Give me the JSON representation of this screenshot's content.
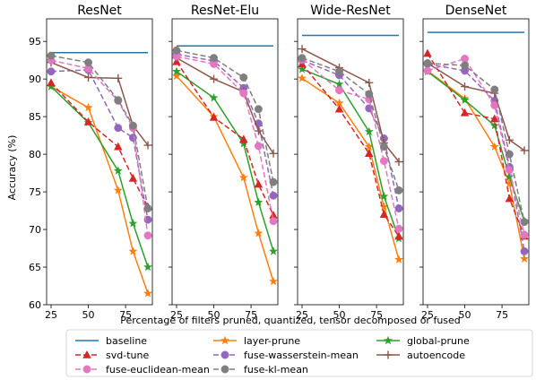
{
  "chart_data": {
    "type": "line",
    "ylabel": "Accuracy (%)",
    "xlabel": "Percentage of filters pruned, quantized, tensor decomposed or fused",
    "ylim": [
      60,
      98
    ],
    "xlim": [
      22,
      93
    ],
    "xticks": [
      25,
      50,
      75
    ],
    "yticks": [
      60,
      65,
      70,
      75,
      80,
      85,
      90,
      95
    ],
    "legend_position": "bottom",
    "series_styles": [
      {
        "name": "baseline",
        "color": "#1f77b4",
        "dash": "",
        "marker": "none"
      },
      {
        "name": "layer-prune",
        "color": "#ff7f0e",
        "dash": "",
        "marker": "star"
      },
      {
        "name": "global-prune",
        "color": "#2ca02c",
        "dash": "",
        "marker": "star"
      },
      {
        "name": "svd-tune",
        "color": "#d62728",
        "dash": "6,3",
        "marker": "triangle"
      },
      {
        "name": "fuse-wasserstein-mean",
        "color": "#9467bd",
        "dash": "6,3",
        "marker": "circle"
      },
      {
        "name": "autoencode",
        "color": "#8c564b",
        "dash": "",
        "marker": "plus"
      },
      {
        "name": "fuse-euclidean-mean",
        "color": "#e377c2",
        "dash": "6,3",
        "marker": "circle"
      },
      {
        "name": "fuse-kl-mean",
        "color": "#7f7f7f",
        "dash": "6,3",
        "marker": "circle"
      }
    ],
    "legend_order": [
      "baseline",
      "svd-tune",
      "fuse-euclidean-mean",
      "layer-prune",
      "fuse-wasserstein-mean",
      "fuse-kl-mean",
      "global-prune",
      "autoencode"
    ],
    "panels": [
      {
        "title": "ResNet",
        "series": [
          {
            "name": "baseline",
            "x": [
              25,
              90
            ],
            "y": [
              93.5,
              93.5
            ]
          },
          {
            "name": "layer-prune",
            "x": [
              25,
              50,
              70,
              80,
              90
            ],
            "y": [
              89,
              86.2,
              75.2,
              67.1,
              61.5
            ]
          },
          {
            "name": "global-prune",
            "x": [
              25,
              50,
              70,
              80,
              90
            ],
            "y": [
              89,
              84.2,
              77.8,
              70.8,
              65
            ]
          },
          {
            "name": "svd-tune",
            "x": [
              25,
              50,
              70,
              80,
              90
            ],
            "y": [
              89.5,
              84.3,
              81,
              76.8,
              73
            ]
          },
          {
            "name": "fuse-wasserstein-mean",
            "x": [
              25,
              50,
              70,
              80,
              90
            ],
            "y": [
              91,
              91.2,
              83.5,
              82.2,
              71.3
            ]
          },
          {
            "name": "autoencode",
            "x": [
              25,
              50,
              70,
              80,
              90
            ],
            "y": [
              92.2,
              90.2,
              90.1,
              83.8,
              81.2
            ]
          },
          {
            "name": "fuse-euclidean-mean",
            "x": [
              25,
              50,
              70,
              80,
              90
            ],
            "y": [
              92.5,
              91.4,
              87.1,
              83.5,
              69.2
            ]
          },
          {
            "name": "fuse-kl-mean",
            "x": [
              25,
              50,
              70,
              80,
              90
            ],
            "y": [
              93.1,
              92.2,
              87.2,
              83.8,
              72.8
            ]
          }
        ]
      },
      {
        "title": "ResNet-Elu",
        "series": [
          {
            "name": "baseline",
            "x": [
              25,
              90
            ],
            "y": [
              94.4,
              94.4
            ]
          },
          {
            "name": "layer-prune",
            "x": [
              25,
              50,
              70,
              80,
              90
            ],
            "y": [
              90.4,
              85,
              76.9,
              69.5,
              63.1
            ]
          },
          {
            "name": "global-prune",
            "x": [
              25,
              50,
              70,
              80,
              90
            ],
            "y": [
              91,
              87.5,
              81.4,
              73.6,
              67.1
            ]
          },
          {
            "name": "svd-tune",
            "x": [
              25,
              50,
              70,
              80,
              90
            ],
            "y": [
              92.3,
              84.9,
              82,
              76,
              71.9
            ]
          },
          {
            "name": "fuse-wasserstein-mean",
            "x": [
              25,
              50,
              70,
              80,
              90
            ],
            "y": [
              93.3,
              92.4,
              88.8,
              84.1,
              74.5
            ]
          },
          {
            "name": "autoencode",
            "x": [
              25,
              50,
              70,
              80,
              90
            ],
            "y": [
              92.8,
              90,
              88.3,
              83.1,
              80.1
            ]
          },
          {
            "name": "fuse-euclidean-mean",
            "x": [
              25,
              50,
              70,
              80,
              90
            ],
            "y": [
              93,
              92,
              88.1,
              81.1,
              71.1
            ]
          },
          {
            "name": "fuse-kl-mean",
            "x": [
              25,
              50,
              70,
              80,
              90
            ],
            "y": [
              93.8,
              92.8,
              90.2,
              86,
              76.3
            ]
          }
        ]
      },
      {
        "title": "Wide-ResNet",
        "series": [
          {
            "name": "baseline",
            "x": [
              25,
              90
            ],
            "y": [
              95.8,
              95.8
            ]
          },
          {
            "name": "layer-prune",
            "x": [
              25,
              50,
              70,
              80,
              90
            ],
            "y": [
              90.1,
              86.8,
              81,
              73,
              66
            ]
          },
          {
            "name": "global-prune",
            "x": [
              25,
              50,
              70,
              80,
              90
            ],
            "y": [
              91.3,
              89.3,
              83,
              74.4,
              68.8
            ]
          },
          {
            "name": "svd-tune",
            "x": [
              25,
              50,
              70,
              80,
              90
            ],
            "y": [
              92,
              86,
              80.1,
              72,
              69.1
            ]
          },
          {
            "name": "fuse-wasserstein-mean",
            "x": [
              25,
              50,
              70,
              80,
              90
            ],
            "y": [
              92.5,
              90.5,
              86.1,
              82.1,
              72.8
            ]
          },
          {
            "name": "autoencode",
            "x": [
              25,
              50,
              70,
              80,
              90
            ],
            "y": [
              94,
              91.5,
              89.5,
              81.5,
              79
            ]
          },
          {
            "name": "fuse-euclidean-mean",
            "x": [
              25,
              50,
              70,
              80,
              90
            ],
            "y": [
              92.6,
              88.5,
              87.3,
              79.1,
              70.1
            ]
          },
          {
            "name": "fuse-kl-mean",
            "x": [
              25,
              50,
              70,
              80,
              90
            ],
            "y": [
              92.8,
              91,
              88,
              81,
              75.2
            ]
          }
        ]
      },
      {
        "title": "DenseNet",
        "series": [
          {
            "name": "baseline",
            "x": [
              25,
              90
            ],
            "y": [
              96.2,
              96.2
            ]
          },
          {
            "name": "layer-prune",
            "x": [
              25,
              50,
              70,
              80,
              90
            ],
            "y": [
              91.1,
              87.4,
              81,
              76.1,
              66.1
            ]
          },
          {
            "name": "global-prune",
            "x": [
              25,
              50,
              70,
              80,
              90
            ],
            "y": [
              91,
              87.2,
              83.8,
              77,
              71.1
            ]
          },
          {
            "name": "svd-tune",
            "x": [
              25,
              50,
              70,
              80,
              90
            ],
            "y": [
              93.4,
              85.5,
              84.7,
              74.1,
              69.1
            ]
          },
          {
            "name": "fuse-wasserstein-mean",
            "x": [
              25,
              50,
              70,
              80,
              90
            ],
            "y": [
              92,
              91.1,
              87.1,
              78.3,
              67.1
            ]
          },
          {
            "name": "autoencode",
            "x": [
              25,
              50,
              70,
              80,
              90
            ],
            "y": [
              92.1,
              89,
              88.1,
              81.9,
              80.5
            ]
          },
          {
            "name": "fuse-euclidean-mean",
            "x": [
              25,
              50,
              70,
              80,
              90
            ],
            "y": [
              91.1,
              92.7,
              86.5,
              77.9,
              69.3
            ]
          },
          {
            "name": "fuse-kl-mean",
            "x": [
              25,
              50,
              70,
              80,
              90
            ],
            "y": [
              92.1,
              91.8,
              88.6,
              80,
              71
            ]
          }
        ]
      }
    ]
  }
}
